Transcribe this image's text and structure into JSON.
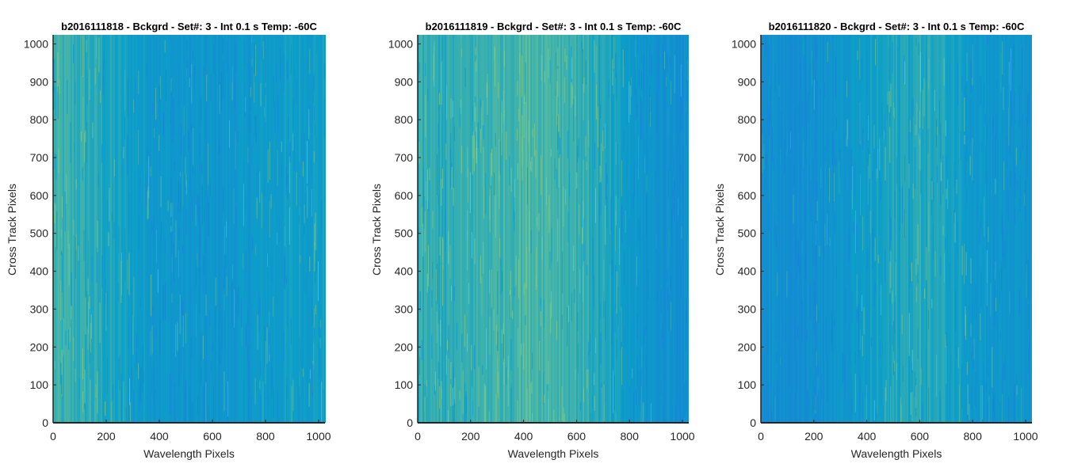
{
  "colors": {
    "base": "#0d9fc8",
    "low": "#1685d6",
    "high": "#7ec98a",
    "axis": "#262626"
  },
  "chart_data": [
    {
      "type": "heatmap",
      "title": "b2016111818 - Bckgrd - Set#: 3 - Int 0.1 s Temp: -60C",
      "xlabel": "Wavelength Pixels",
      "ylabel": "Cross Track Pixels",
      "xlim": [
        0,
        1024
      ],
      "ylim": [
        0,
        1024
      ],
      "xticks": [
        0,
        200,
        400,
        600,
        800,
        1000
      ],
      "yticks": [
        0,
        100,
        200,
        300,
        400,
        500,
        600,
        700,
        800,
        900,
        1000
      ],
      "intensity_profile": [
        0.68,
        0.62,
        0.52,
        0.42,
        0.34,
        0.3,
        0.3,
        0.34,
        0.4,
        0.44,
        0.44
      ]
    },
    {
      "type": "heatmap",
      "title": "b2016111819 - Bckgrd - Set#: 3 - Int 0.1 s Temp: -60C",
      "xlabel": "Wavelength Pixels",
      "ylabel": "Cross Track Pixels",
      "xlim": [
        0,
        1024
      ],
      "ylim": [
        0,
        1024
      ],
      "xticks": [
        0,
        200,
        400,
        600,
        800,
        1000
      ],
      "yticks": [
        0,
        100,
        200,
        300,
        400,
        500,
        600,
        700,
        800,
        900,
        1000
      ],
      "intensity_profile": [
        0.62,
        0.6,
        0.64,
        0.7,
        0.76,
        0.74,
        0.66,
        0.5,
        0.34,
        0.24,
        0.2
      ]
    },
    {
      "type": "heatmap",
      "title": "b2016111820 - Bckgrd - Set#: 3 - Int 0.1 s Temp: -60C",
      "xlabel": "Wavelength Pixels",
      "ylabel": "Cross Track Pixels",
      "xlim": [
        0,
        1024
      ],
      "ylim": [
        0,
        1024
      ],
      "xticks": [
        0,
        200,
        400,
        600,
        800,
        1000
      ],
      "yticks": [
        0,
        100,
        200,
        300,
        400,
        500,
        600,
        700,
        800,
        900,
        1000
      ],
      "intensity_profile": [
        0.22,
        0.2,
        0.22,
        0.3,
        0.42,
        0.54,
        0.58,
        0.5,
        0.38,
        0.3,
        0.28
      ]
    }
  ]
}
